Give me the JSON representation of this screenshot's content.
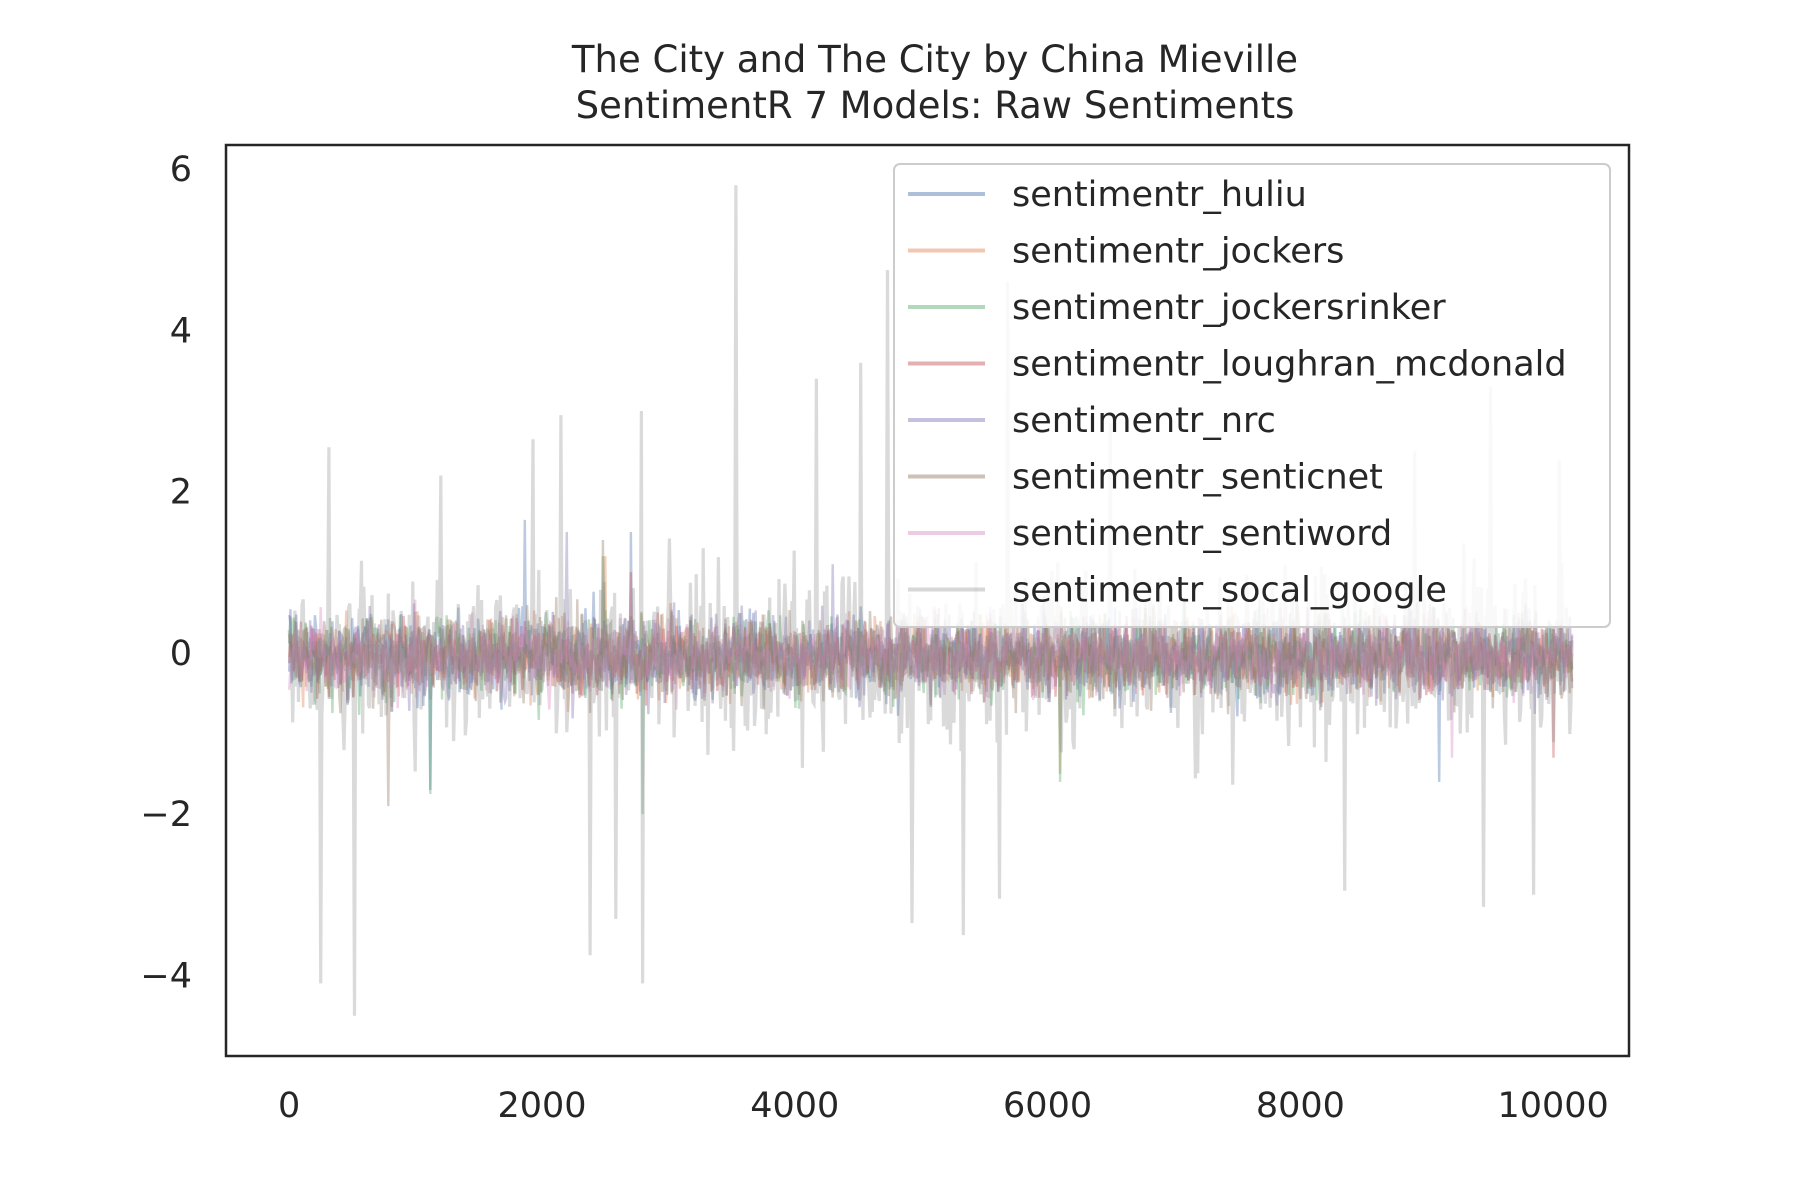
{
  "chart_data": {
    "type": "line",
    "title": [
      "The City and The City by China Mieville",
      "SentimentR 7 Models: Raw Sentiments"
    ],
    "xlabel": "",
    "ylabel": "",
    "xlim": [
      -500,
      10600
    ],
    "ylim": [
      -5,
      6.3
    ],
    "x_ticks": [
      0,
      2000,
      4000,
      6000,
      8000,
      10000
    ],
    "x_tick_labels": [
      "0",
      "2000",
      "4000",
      "6000",
      "8000",
      "10000"
    ],
    "y_ticks": [
      -4,
      -2,
      0,
      2,
      4,
      6
    ],
    "y_tick_labels": [
      "−4",
      "−2",
      "0",
      "2",
      "4",
      "6"
    ],
    "x_range": [
      0,
      10150
    ],
    "grid": false,
    "legend_position": "upper right",
    "series": [
      {
        "name": "sentimentr_huliu",
        "color": "#4c72b0",
        "amplitude": 0.55,
        "spikes": [
          [
            1860,
            1.65
          ],
          [
            1120,
            -1.7
          ],
          [
            2700,
            1.5
          ],
          [
            9100,
            -1.6
          ]
        ]
      },
      {
        "name": "sentimentr_jockers",
        "color": "#dd8452",
        "amplitude": 0.5,
        "spikes": [
          [
            2500,
            1.2
          ],
          [
            6100,
            -1.5
          ]
        ]
      },
      {
        "name": "sentimentr_jockersrinker",
        "color": "#55a868",
        "amplitude": 0.55,
        "spikes": [
          [
            2800,
            -2.0
          ],
          [
            2480,
            1.2
          ],
          [
            1120,
            -1.75
          ],
          [
            6100,
            -1.6
          ]
        ]
      },
      {
        "name": "sentimentr_loughran_mcdonald",
        "color": "#c44e52",
        "amplitude": 0.45,
        "spikes": [
          [
            2700,
            1.0
          ],
          [
            10000,
            -1.3
          ]
        ]
      },
      {
        "name": "sentimentr_nrc",
        "color": "#8172b3",
        "amplitude": 0.55,
        "spikes": [
          [
            2200,
            1.5
          ],
          [
            4300,
            1.1
          ]
        ]
      },
      {
        "name": "sentimentr_senticnet",
        "color": "#937860",
        "amplitude": 0.6,
        "spikes": [
          [
            2480,
            1.4
          ],
          [
            780,
            -1.9
          ]
        ]
      },
      {
        "name": "sentimentr_sentiword",
        "color": "#da8bc3",
        "amplitude": 0.5,
        "spikes": [
          [
            9200,
            -1.3
          ]
        ]
      },
      {
        "name": "sentimentr_socal_google",
        "color": "#8c8c8c",
        "amplitude": 1.1,
        "spikes": [
          [
            3530,
            5.8
          ],
          [
            4730,
            4.75
          ],
          [
            5680,
            4.6
          ],
          [
            520,
            -4.5
          ],
          [
            250,
            -4.1
          ],
          [
            2800,
            -4.1
          ],
          [
            2380,
            -3.75
          ],
          [
            5330,
            -3.5
          ],
          [
            5620,
            -3.05
          ],
          [
            9450,
            -3.15
          ],
          [
            9850,
            -3.0
          ],
          [
            8350,
            -2.95
          ],
          [
            4930,
            -3.35
          ],
          [
            2580,
            -3.3
          ],
          [
            4520,
            3.6
          ],
          [
            4170,
            3.4
          ],
          [
            9500,
            3.3
          ],
          [
            2790,
            3.0
          ],
          [
            310,
            2.55
          ],
          [
            1200,
            2.2
          ],
          [
            1930,
            2.65
          ],
          [
            2150,
            2.95
          ],
          [
            6500,
            2.85
          ],
          [
            8900,
            2.5
          ],
          [
            10050,
            2.4
          ]
        ]
      }
    ]
  }
}
